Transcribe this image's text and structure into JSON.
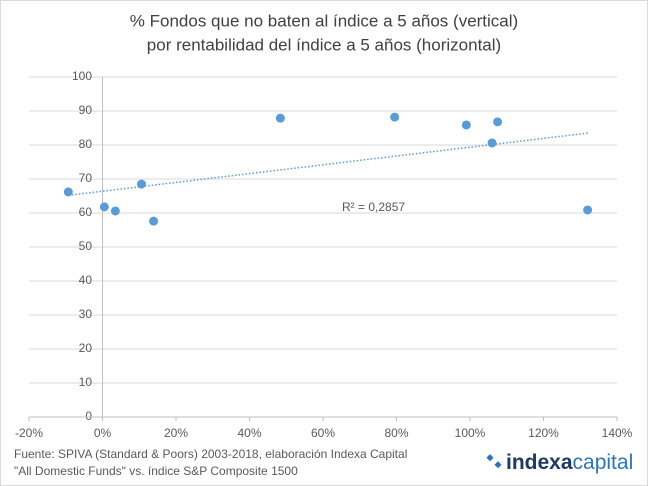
{
  "chart_data": {
    "type": "scatter",
    "title": "% Fondos que no baten al índice a 5 años (vertical)",
    "subtitle": "por rentabilidad del índice a 5 años (horizontal)",
    "x": [
      -9.3,
      0.5,
      3.5,
      10.6,
      13.9,
      48.4,
      79.5,
      99,
      107.5,
      106,
      132
    ],
    "values": [
      66.2,
      61.8,
      60.6,
      68.5,
      57.6,
      87.9,
      88.2,
      85.9,
      86.8,
      80.6,
      60.9
    ],
    "color": "#5b9bd5",
    "trendline": {
      "x": [
        -9.3,
        132
      ],
      "values": [
        65.2,
        83.5
      ]
    },
    "annotation": "R² = 0,2857",
    "xlim": [
      -20,
      140
    ],
    "xticks": [
      {
        "value": -20,
        "label": "-20%"
      },
      {
        "value": 0,
        "label": "0%"
      },
      {
        "value": 20,
        "label": "20%"
      },
      {
        "value": 40,
        "label": "40%"
      },
      {
        "value": 60,
        "label": "60%"
      },
      {
        "value": 80,
        "label": "80%"
      },
      {
        "value": 100,
        "label": "100%"
      },
      {
        "value": 120,
        "label": "120%"
      },
      {
        "value": 140,
        "label": "140%"
      }
    ],
    "ylim": [
      0,
      100
    ],
    "yticks": [
      0,
      10,
      20,
      30,
      40,
      50,
      60,
      70,
      80,
      90,
      100
    ],
    "grid": true
  },
  "footer": {
    "source": "Fuente: SPIVA (Standard & Poors) 2003-2018, elaboración Indexa Capital",
    "note": "\"All Domestic Funds\" vs. índice S&P Composite 1500",
    "logo_part1": "indexa",
    "logo_part2": "capital"
  }
}
